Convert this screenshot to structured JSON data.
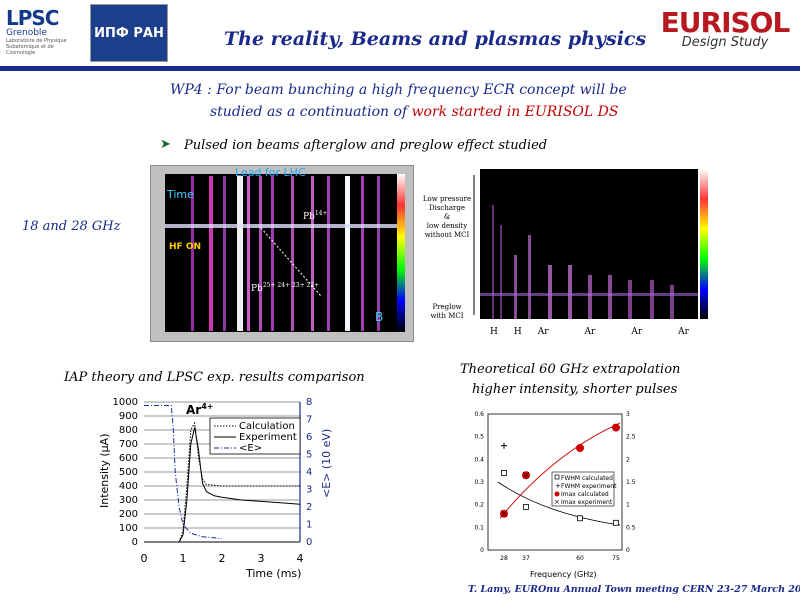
{
  "header": {
    "lpsc_logo_text": "LPSC",
    "lpsc_sub": "Grenoble",
    "lpsc_lines": [
      "Laboratoire de Physique",
      "Subatomique et de Cosmologie"
    ],
    "iap_logo_text": "ИПФ РАН",
    "title": "The reality, Beams and plasmas physics",
    "eurisol_logo_text": "EURISOL",
    "eurisol_sub": "Design Study"
  },
  "intro": {
    "line1": "WP4 : For beam bunching a high frequency ECR concept will be",
    "line2_a": "studied as a continuation of ",
    "line2_b": "work started in EURISOL DS"
  },
  "bullet": "Pulsed ion beams afterglow and preglow effect studied",
  "freq_label": "18 and 28 GHz",
  "left_spectrum": {
    "lead_label": "Lead for LHC",
    "time_label": "Time",
    "hf_on_label": "HF ON",
    "pb14_label": "Pb",
    "pb14_sup": "14+",
    "pb_group_label": "Pb",
    "pb_group_sup": "25+ 24+ 23+ 22+",
    "b_label": "B"
  },
  "right_spectrum": {
    "low_pressure": [
      "Low pressure",
      "Discharge",
      "&",
      "low density",
      "without MCI"
    ],
    "preglow": [
      "Preglow",
      "with MCI"
    ],
    "bottom_labels": [
      "H",
      "H",
      "Ar",
      "Ar",
      "Ar",
      "Ar"
    ]
  },
  "chart_left": {
    "caption": "IAP theory and LPSC exp. results comparison",
    "ion_label": "Ar",
    "ion_sup": "4+",
    "ylabel": "Intensity (μA)",
    "y2label": "<E> (10 eV)",
    "xlabel": "Time (ms)",
    "legend": [
      "Calculation",
      "Experiment",
      "<E>"
    ]
  },
  "chart_right": {
    "caption_line1": "Theoretical 60 GHz extrapolation",
    "caption_line2": "higher intensity, shorter pulses",
    "xlabel": "Frequency (GHz)",
    "legend": [
      "FWHM calculated",
      "FWHM experiment",
      "Imax calculated",
      "Imax experiment"
    ]
  },
  "chart_data": [
    {
      "type": "line",
      "xlabel": "Time (ms)",
      "ylabel": "Intensity (μA)",
      "xlim": [
        0,
        4
      ],
      "ylim": [
        0,
        1000
      ],
      "y2lim": [
        0,
        8
      ],
      "x_ticks": [
        "0",
        "1",
        "2",
        "3",
        "4"
      ],
      "y_ticks": [
        "0",
        "100",
        "200",
        "300",
        "400",
        "500",
        "600",
        "700",
        "800",
        "900",
        "1000"
      ],
      "y2_ticks": [
        "0",
        "1",
        "2",
        "3",
        "4",
        "5",
        "6",
        "7",
        "8"
      ],
      "series": [
        {
          "name": "Calculation",
          "x": [
            0.9,
            1.0,
            1.1,
            1.2,
            1.3,
            1.4,
            1.5,
            1.6,
            1.8,
            2.0,
            2.5,
            3.0,
            3.5,
            4.0
          ],
          "y": [
            0,
            80,
            400,
            800,
            850,
            600,
            450,
            410,
            405,
            400,
            400,
            400,
            400,
            400
          ]
        },
        {
          "name": "Experiment",
          "x": [
            0.9,
            1.0,
            1.1,
            1.2,
            1.3,
            1.4,
            1.5,
            1.6,
            1.8,
            2.0,
            2.5,
            3.0,
            3.5,
            4.0
          ],
          "y": [
            0,
            50,
            300,
            700,
            820,
            650,
            420,
            360,
            330,
            320,
            300,
            290,
            280,
            270
          ]
        },
        {
          "name": "<E>",
          "x": [
            0,
            0.7,
            0.75,
            0.8,
            0.9,
            1.0,
            1.2,
            1.5,
            2.0
          ],
          "y": [
            7.8,
            7.8,
            6.5,
            4.0,
            2.0,
            1.0,
            0.5,
            0.3,
            0.2
          ]
        }
      ]
    },
    {
      "type": "scatter",
      "xlabel": "Frequency (GHz)",
      "x_ticks": [
        "28",
        "37",
        "60",
        "75"
      ],
      "ylim": [
        0,
        0.6
      ],
      "y2lim": [
        0,
        3
      ],
      "y_ticks": [
        "0",
        "0.1",
        "0.2",
        "0.3",
        "0.4",
        "0.5",
        "0.6"
      ],
      "y2_ticks": [
        "0",
        "0.5",
        "1",
        "1.5",
        "2",
        "2.5",
        "3"
      ],
      "series": [
        {
          "name": "FWHM calculated",
          "x": [
            28,
            37,
            60,
            75
          ],
          "y": [
            0.34,
            0.19,
            0.14,
            0.12
          ]
        },
        {
          "name": "FWHM experiment",
          "x": [
            28
          ],
          "y": [
            0.46
          ]
        },
        {
          "name": "Imax calculated",
          "x": [
            28,
            37,
            60,
            75
          ],
          "y": [
            0.16,
            0.33,
            0.45,
            0.54
          ]
        },
        {
          "name": "Imax experiment",
          "x": [
            28,
            37
          ],
          "y": [
            0.16,
            0.33
          ]
        }
      ]
    }
  ],
  "footer": "T. Lamy, EUROnu Annual Town meeting CERN 23-27 March 2009"
}
